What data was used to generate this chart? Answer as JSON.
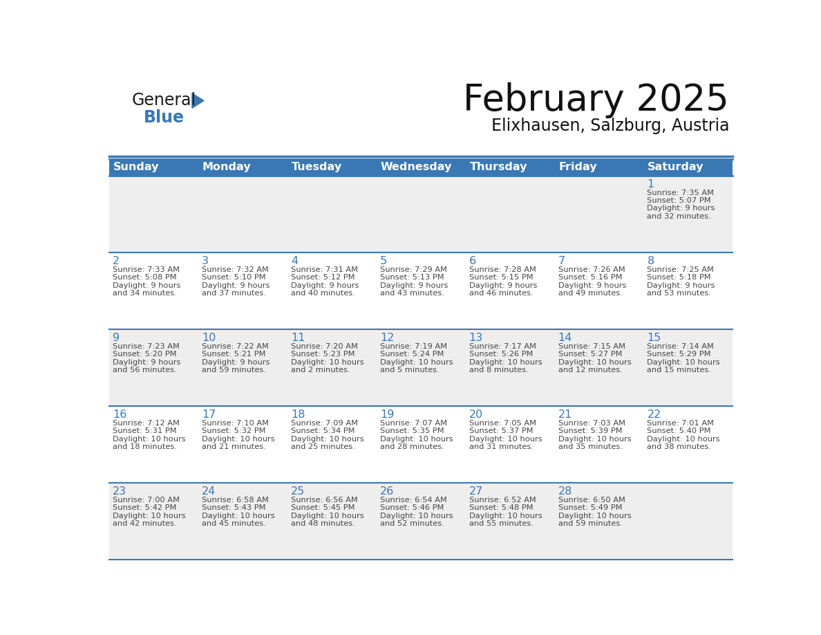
{
  "title": "February 2025",
  "subtitle": "Elixhausen, Salzburg, Austria",
  "days_of_week": [
    "Sunday",
    "Monday",
    "Tuesday",
    "Wednesday",
    "Thursday",
    "Friday",
    "Saturday"
  ],
  "header_bg": "#3a78b5",
  "header_text": "#ffffff",
  "row_bgs": [
    "#eeeeee",
    "#ffffff",
    "#eeeeee",
    "#ffffff",
    "#eeeeee"
  ],
  "border_color": "#3a78b5",
  "day_number_color": "#3a78b5",
  "text_color": "#444444",
  "title_color": "#111111",
  "logo_general_color": "#1a1a1a",
  "logo_blue_color": "#3a78b5",
  "logo_triangle_color": "#3a78b5",
  "calendar_data": [
    {
      "day": 1,
      "col": 6,
      "row": 0,
      "sunrise": "7:35 AM",
      "sunset": "5:07 PM",
      "daylight": "9 hours and 32 minutes"
    },
    {
      "day": 2,
      "col": 0,
      "row": 1,
      "sunrise": "7:33 AM",
      "sunset": "5:08 PM",
      "daylight": "9 hours and 34 minutes"
    },
    {
      "day": 3,
      "col": 1,
      "row": 1,
      "sunrise": "7:32 AM",
      "sunset": "5:10 PM",
      "daylight": "9 hours and 37 minutes"
    },
    {
      "day": 4,
      "col": 2,
      "row": 1,
      "sunrise": "7:31 AM",
      "sunset": "5:12 PM",
      "daylight": "9 hours and 40 minutes"
    },
    {
      "day": 5,
      "col": 3,
      "row": 1,
      "sunrise": "7:29 AM",
      "sunset": "5:13 PM",
      "daylight": "9 hours and 43 minutes"
    },
    {
      "day": 6,
      "col": 4,
      "row": 1,
      "sunrise": "7:28 AM",
      "sunset": "5:15 PM",
      "daylight": "9 hours and 46 minutes"
    },
    {
      "day": 7,
      "col": 5,
      "row": 1,
      "sunrise": "7:26 AM",
      "sunset": "5:16 PM",
      "daylight": "9 hours and 49 minutes"
    },
    {
      "day": 8,
      "col": 6,
      "row": 1,
      "sunrise": "7:25 AM",
      "sunset": "5:18 PM",
      "daylight": "9 hours and 53 minutes"
    },
    {
      "day": 9,
      "col": 0,
      "row": 2,
      "sunrise": "7:23 AM",
      "sunset": "5:20 PM",
      "daylight": "9 hours and 56 minutes"
    },
    {
      "day": 10,
      "col": 1,
      "row": 2,
      "sunrise": "7:22 AM",
      "sunset": "5:21 PM",
      "daylight": "9 hours and 59 minutes"
    },
    {
      "day": 11,
      "col": 2,
      "row": 2,
      "sunrise": "7:20 AM",
      "sunset": "5:23 PM",
      "daylight": "10 hours and 2 minutes"
    },
    {
      "day": 12,
      "col": 3,
      "row": 2,
      "sunrise": "7:19 AM",
      "sunset": "5:24 PM",
      "daylight": "10 hours and 5 minutes"
    },
    {
      "day": 13,
      "col": 4,
      "row": 2,
      "sunrise": "7:17 AM",
      "sunset": "5:26 PM",
      "daylight": "10 hours and 8 minutes"
    },
    {
      "day": 14,
      "col": 5,
      "row": 2,
      "sunrise": "7:15 AM",
      "sunset": "5:27 PM",
      "daylight": "10 hours and 12 minutes"
    },
    {
      "day": 15,
      "col": 6,
      "row": 2,
      "sunrise": "7:14 AM",
      "sunset": "5:29 PM",
      "daylight": "10 hours and 15 minutes"
    },
    {
      "day": 16,
      "col": 0,
      "row": 3,
      "sunrise": "7:12 AM",
      "sunset": "5:31 PM",
      "daylight": "10 hours and 18 minutes"
    },
    {
      "day": 17,
      "col": 1,
      "row": 3,
      "sunrise": "7:10 AM",
      "sunset": "5:32 PM",
      "daylight": "10 hours and 21 minutes"
    },
    {
      "day": 18,
      "col": 2,
      "row": 3,
      "sunrise": "7:09 AM",
      "sunset": "5:34 PM",
      "daylight": "10 hours and 25 minutes"
    },
    {
      "day": 19,
      "col": 3,
      "row": 3,
      "sunrise": "7:07 AM",
      "sunset": "5:35 PM",
      "daylight": "10 hours and 28 minutes"
    },
    {
      "day": 20,
      "col": 4,
      "row": 3,
      "sunrise": "7:05 AM",
      "sunset": "5:37 PM",
      "daylight": "10 hours and 31 minutes"
    },
    {
      "day": 21,
      "col": 5,
      "row": 3,
      "sunrise": "7:03 AM",
      "sunset": "5:39 PM",
      "daylight": "10 hours and 35 minutes"
    },
    {
      "day": 22,
      "col": 6,
      "row": 3,
      "sunrise": "7:01 AM",
      "sunset": "5:40 PM",
      "daylight": "10 hours and 38 minutes"
    },
    {
      "day": 23,
      "col": 0,
      "row": 4,
      "sunrise": "7:00 AM",
      "sunset": "5:42 PM",
      "daylight": "10 hours and 42 minutes"
    },
    {
      "day": 24,
      "col": 1,
      "row": 4,
      "sunrise": "6:58 AM",
      "sunset": "5:43 PM",
      "daylight": "10 hours and 45 minutes"
    },
    {
      "day": 25,
      "col": 2,
      "row": 4,
      "sunrise": "6:56 AM",
      "sunset": "5:45 PM",
      "daylight": "10 hours and 48 minutes"
    },
    {
      "day": 26,
      "col": 3,
      "row": 4,
      "sunrise": "6:54 AM",
      "sunset": "5:46 PM",
      "daylight": "10 hours and 52 minutes"
    },
    {
      "day": 27,
      "col": 4,
      "row": 4,
      "sunrise": "6:52 AM",
      "sunset": "5:48 PM",
      "daylight": "10 hours and 55 minutes"
    },
    {
      "day": 28,
      "col": 5,
      "row": 4,
      "sunrise": "6:50 AM",
      "sunset": "5:49 PM",
      "daylight": "10 hours and 59 minutes"
    }
  ],
  "num_rows": 5,
  "num_cols": 7
}
